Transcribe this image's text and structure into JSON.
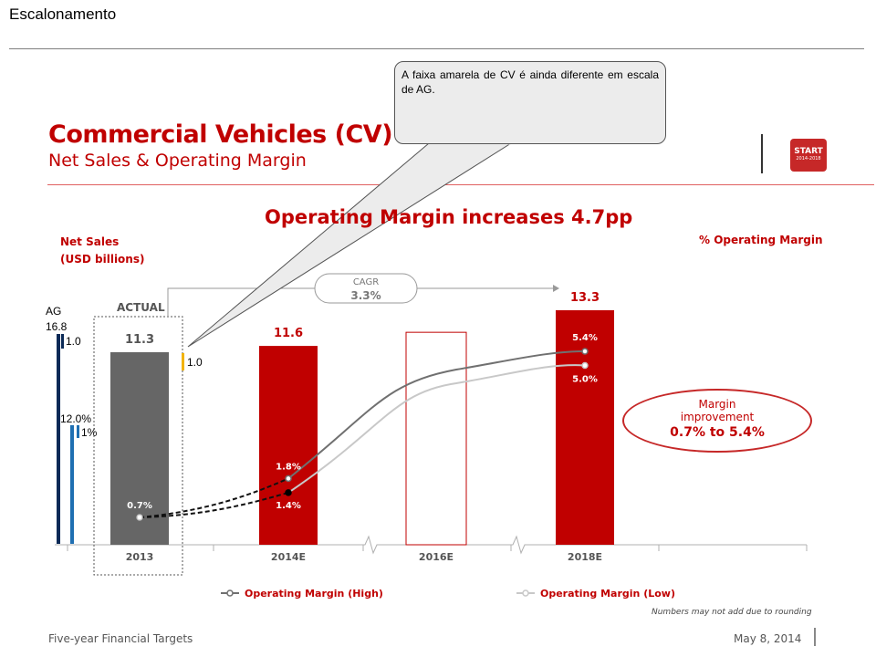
{
  "slide": {
    "title": "Escalonamento",
    "callout_text": "A faixa amarela de CV é ainda diferente em escala de AG."
  },
  "header": {
    "title": "Commercial Vehicles (CV)",
    "subtitle": "Net Sales & Operating Margin",
    "logo_main": "START",
    "logo_sub": "2014-2018"
  },
  "chart_data": {
    "type": "bar",
    "title": "Operating Margin increases 4.7pp",
    "ylabel": "Net Sales\n(USD billions)",
    "y2label": "% Operating Margin",
    "categories": [
      "2013",
      "2014E",
      "2016E",
      "2018E"
    ],
    "series": [
      {
        "name": "Net Sales",
        "values": [
          11.3,
          11.6,
          null,
          13.3
        ],
        "labels": [
          "11.3",
          "11.6",
          "",
          "13.3"
        ]
      },
      {
        "name": "Operating Margin (High)",
        "values": [
          0.7,
          1.8,
          null,
          5.4
        ],
        "labels": [
          "0.7%",
          "1.8%",
          "",
          "5.4%"
        ]
      },
      {
        "name": "Operating Margin (Low)",
        "values": [
          0.7,
          1.4,
          null,
          5.0
        ],
        "labels": [
          "",
          "1.4%",
          "",
          "5.0%"
        ]
      }
    ],
    "cagr_label": "CAGR",
    "cagr_value": "3.3%",
    "actual_label": "ACTUAL",
    "legend_position": "bottom",
    "colors": {
      "actual": "#666666",
      "forecast": "#c00000",
      "high_line": "#707070",
      "low_line": "#c8c8c8",
      "ag_scale": "#0b2a57",
      "ag_scale2": "#1f6fb2",
      "cv_band": "#f2b300"
    }
  },
  "margin_callout": {
    "line1": "Margin",
    "line2": "improvement",
    "line3": "0.7% to 5.4%"
  },
  "ag_scale": {
    "title": "AG",
    "value": "16.8",
    "tick": "1.0",
    "pct": "12.0%",
    "pct_tick": "1%"
  },
  "cv_band_label": "1.0",
  "footnote": "Numbers may not add due to rounding",
  "footer": {
    "left": "Five-year Financial Targets",
    "right": "May 8, 2014"
  }
}
